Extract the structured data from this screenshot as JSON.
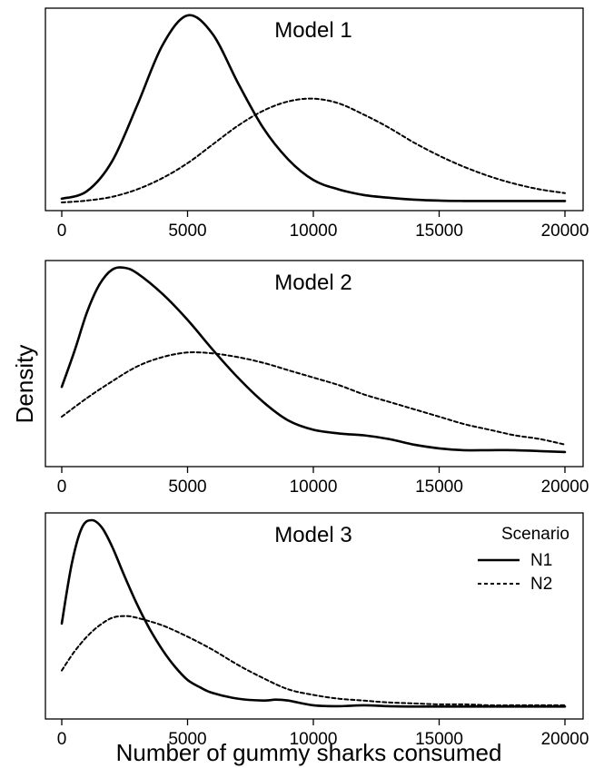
{
  "figure": {
    "ylabel": "Density",
    "xlabel": "Number of gummy sharks consumed"
  },
  "legend": {
    "title": "Scenario",
    "entries": [
      {
        "label": "N1",
        "style": "solid"
      },
      {
        "label": "N2",
        "style": "dashed"
      }
    ]
  },
  "chart_data": [
    {
      "type": "line",
      "title": "Model 1",
      "xlim": [
        0,
        20000
      ],
      "xticks": [
        "0",
        "5000",
        "10000",
        "15000",
        "20000"
      ],
      "series": [
        {
          "name": "N1",
          "style": "solid",
          "x": [
            0,
            1000,
            2000,
            3000,
            4000,
            5000,
            6000,
            7000,
            8000,
            9000,
            10000,
            11000,
            12000,
            13000,
            14000,
            15000,
            16000,
            17000,
            18000,
            19000,
            20000
          ],
          "y": [
            0.02,
            0.06,
            0.22,
            0.52,
            0.84,
            1.0,
            0.9,
            0.64,
            0.4,
            0.23,
            0.12,
            0.07,
            0.04,
            0.025,
            0.015,
            0.01,
            0.008,
            0.008,
            0.008,
            0.008,
            0.008
          ]
        },
        {
          "name": "N2",
          "style": "dashed",
          "x": [
            0,
            1000,
            2000,
            3000,
            4000,
            5000,
            6000,
            7000,
            8000,
            9000,
            10000,
            11000,
            12000,
            13000,
            14000,
            15000,
            16000,
            17000,
            18000,
            19000,
            20000
          ],
          "y": [
            0.0,
            0.01,
            0.03,
            0.07,
            0.13,
            0.21,
            0.31,
            0.41,
            0.49,
            0.54,
            0.555,
            0.53,
            0.47,
            0.4,
            0.32,
            0.25,
            0.19,
            0.14,
            0.1,
            0.07,
            0.05
          ]
        }
      ]
    },
    {
      "type": "line",
      "title": "Model 2",
      "xlim": [
        0,
        20000
      ],
      "xticks": [
        "0",
        "5000",
        "10000",
        "15000",
        "20000"
      ],
      "series": [
        {
          "name": "N1",
          "style": "solid",
          "x": [
            0,
            500,
            1000,
            1500,
            2000,
            2500,
            3000,
            4000,
            5000,
            6000,
            7000,
            8000,
            9000,
            10000,
            11000,
            12000,
            13000,
            14000,
            15000,
            16000,
            17000,
            18000,
            19000,
            20000
          ],
          "y": [
            0.36,
            0.55,
            0.76,
            0.91,
            0.99,
            1.0,
            0.97,
            0.86,
            0.72,
            0.56,
            0.41,
            0.28,
            0.18,
            0.13,
            0.11,
            0.1,
            0.08,
            0.05,
            0.03,
            0.02,
            0.02,
            0.02,
            0.015,
            0.01
          ]
        },
        {
          "name": "N2",
          "style": "dashed",
          "x": [
            0,
            1000,
            2000,
            3000,
            4000,
            5000,
            6000,
            7000,
            8000,
            9000,
            10000,
            11000,
            12000,
            13000,
            14000,
            15000,
            16000,
            17000,
            18000,
            19000,
            20000
          ],
          "y": [
            0.2,
            0.3,
            0.39,
            0.47,
            0.52,
            0.545,
            0.54,
            0.52,
            0.49,
            0.45,
            0.41,
            0.37,
            0.32,
            0.28,
            0.24,
            0.2,
            0.16,
            0.13,
            0.1,
            0.08,
            0.05
          ]
        }
      ]
    },
    {
      "type": "line",
      "title": "Model 3",
      "xlim": [
        0,
        20000
      ],
      "xticks": [
        "0",
        "5000",
        "10000",
        "15000",
        "20000"
      ],
      "series": [
        {
          "name": "N1",
          "style": "solid",
          "x": [
            0,
            400,
            800,
            1200,
            1600,
            2000,
            2500,
            3000,
            3500,
            4000,
            4500,
            5000,
            5500,
            6000,
            7000,
            8000,
            8500,
            9000,
            10000,
            11000,
            12000,
            13000,
            14000,
            15000,
            16000,
            17000,
            18000,
            19000,
            20000
          ],
          "y": [
            0.45,
            0.77,
            0.96,
            1.0,
            0.96,
            0.86,
            0.7,
            0.55,
            0.42,
            0.31,
            0.22,
            0.15,
            0.11,
            0.08,
            0.05,
            0.04,
            0.045,
            0.04,
            0.015,
            0.01,
            0.015,
            0.01,
            0.008,
            0.008,
            0.008,
            0.008,
            0.008,
            0.008,
            0.008
          ]
        },
        {
          "name": "N2",
          "style": "dashed",
          "x": [
            0,
            500,
            1000,
            1500,
            2000,
            2500,
            3000,
            4000,
            5000,
            6000,
            7000,
            8000,
            9000,
            10000,
            11000,
            12000,
            13000,
            14000,
            15000,
            16000,
            17000,
            18000,
            19000,
            20000
          ],
          "y": [
            0.2,
            0.3,
            0.38,
            0.44,
            0.48,
            0.49,
            0.48,
            0.44,
            0.38,
            0.31,
            0.23,
            0.16,
            0.1,
            0.07,
            0.05,
            0.04,
            0.03,
            0.025,
            0.02,
            0.02,
            0.015,
            0.015,
            0.015,
            0.015
          ]
        }
      ]
    }
  ]
}
